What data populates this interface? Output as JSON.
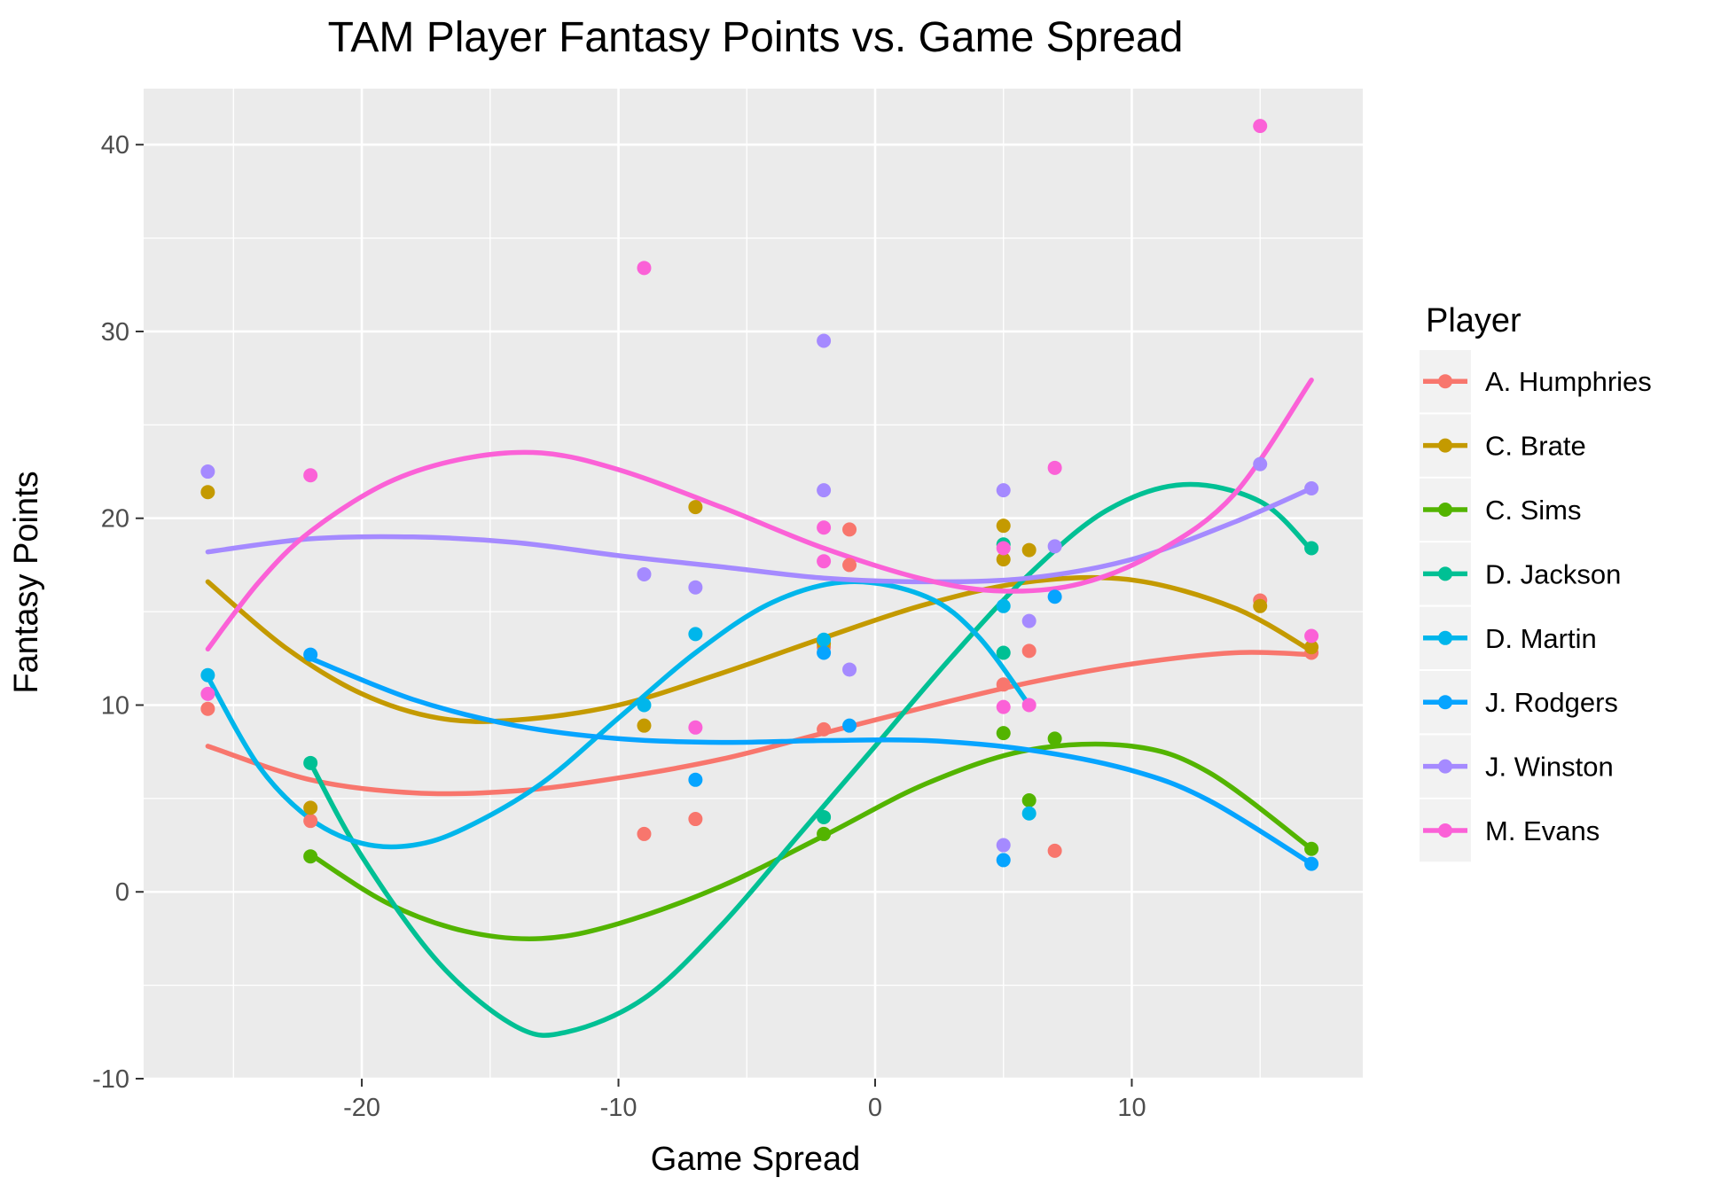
{
  "chart_data": {
    "type": "scatter",
    "title": "TAM Player Fantasy Points vs. Game Spread",
    "xlabel": "Game Spread",
    "ylabel": "Fantasy Points",
    "xlim": [
      -28.5,
      19
    ],
    "ylim": [
      -10,
      43
    ],
    "x_ticks": [
      -20,
      -10,
      0,
      10
    ],
    "x_tick_labels": [
      "-20",
      "-10",
      "0",
      "10"
    ],
    "y_ticks": [
      -10,
      0,
      10,
      20,
      30,
      40
    ],
    "y_tick_labels": [
      "-10",
      "0",
      "10",
      "20",
      "30",
      "40"
    ],
    "grid": true,
    "panel_background": "#EBEBEB",
    "legend": {
      "title": "Player",
      "placement": "right"
    },
    "series": [
      {
        "name": "A. Humphries",
        "color": "#F8766D",
        "points": [
          [
            -26,
            9.8
          ],
          [
            -22,
            3.8
          ],
          [
            -9,
            3.1
          ],
          [
            -7,
            3.9
          ],
          [
            -2,
            8.7
          ],
          [
            -2,
            13.1
          ],
          [
            -1,
            19.4
          ],
          [
            -1,
            17.5
          ],
          [
            5,
            11.1
          ],
          [
            6,
            12.9
          ],
          [
            7,
            2.2
          ],
          [
            15,
            15.6
          ],
          [
            17,
            12.8
          ]
        ],
        "smooth": [
          [
            -26,
            7.8
          ],
          [
            -22,
            6.0
          ],
          [
            -18,
            5.3
          ],
          [
            -14,
            5.4
          ],
          [
            -10,
            6.1
          ],
          [
            -6,
            7.1
          ],
          [
            -2,
            8.5
          ],
          [
            2,
            9.9
          ],
          [
            6,
            11.2
          ],
          [
            10,
            12.2
          ],
          [
            14,
            12.8
          ],
          [
            17,
            12.7
          ]
        ]
      },
      {
        "name": "C. Brate",
        "color": "#C49A00",
        "points": [
          [
            -26,
            21.4
          ],
          [
            -22,
            4.5
          ],
          [
            -9,
            8.9
          ],
          [
            -7,
            20.6
          ],
          [
            -2,
            13.3
          ],
          [
            5,
            19.6
          ],
          [
            5,
            17.8
          ],
          [
            6,
            18.3
          ],
          [
            15,
            15.3
          ],
          [
            17,
            13.1
          ]
        ],
        "smooth": [
          [
            -26,
            16.6
          ],
          [
            -23,
            13.1
          ],
          [
            -20,
            10.6
          ],
          [
            -17,
            9.3
          ],
          [
            -14,
            9.2
          ],
          [
            -10,
            10.0
          ],
          [
            -6,
            11.7
          ],
          [
            -2,
            13.6
          ],
          [
            2,
            15.4
          ],
          [
            6,
            16.6
          ],
          [
            10,
            16.7
          ],
          [
            14,
            15.2
          ],
          [
            17,
            12.9
          ]
        ]
      },
      {
        "name": "C. Sims",
        "color": "#53B400",
        "points": [
          [
            -22,
            1.9
          ],
          [
            -2,
            3.1
          ],
          [
            5,
            8.5
          ],
          [
            6,
            4.9
          ],
          [
            7,
            8.2
          ],
          [
            17,
            2.3
          ]
        ],
        "smooth": [
          [
            -22,
            2.0
          ],
          [
            -19,
            -0.6
          ],
          [
            -16,
            -2.1
          ],
          [
            -13,
            -2.5
          ],
          [
            -10,
            -1.7
          ],
          [
            -6,
            0.3
          ],
          [
            -2,
            3.0
          ],
          [
            2,
            5.8
          ],
          [
            6,
            7.6
          ],
          [
            10,
            7.8
          ],
          [
            13,
            6.4
          ],
          [
            17,
            2.3
          ]
        ]
      },
      {
        "name": "D. Jackson",
        "color": "#00C094",
        "points": [
          [
            -22,
            6.9
          ],
          [
            -2,
            4.0
          ],
          [
            5,
            12.8
          ],
          [
            5,
            18.6
          ],
          [
            17,
            18.4
          ]
        ],
        "smooth": [
          [
            -22,
            6.9
          ],
          [
            -20,
            1.9
          ],
          [
            -17,
            -3.8
          ],
          [
            -14,
            -7.2
          ],
          [
            -12,
            -7.5
          ],
          [
            -9,
            -5.7
          ],
          [
            -6,
            -1.8
          ],
          [
            -3,
            3.0
          ],
          [
            0,
            7.8
          ],
          [
            3,
            12.6
          ],
          [
            6,
            17.0
          ],
          [
            9,
            20.4
          ],
          [
            12,
            21.8
          ],
          [
            15,
            20.9
          ],
          [
            17,
            18.3
          ]
        ]
      },
      {
        "name": "D. Martin",
        "color": "#00B6EB",
        "points": [
          [
            -26,
            11.6
          ],
          [
            -9,
            10.0
          ],
          [
            -7,
            13.8
          ],
          [
            -2,
            13.5
          ],
          [
            5,
            15.3
          ],
          [
            6,
            4.2
          ]
        ],
        "smooth": [
          [
            -26,
            11.5
          ],
          [
            -24,
            6.7
          ],
          [
            -22,
            3.9
          ],
          [
            -20,
            2.6
          ],
          [
            -18,
            2.5
          ],
          [
            -16,
            3.4
          ],
          [
            -13,
            5.8
          ],
          [
            -10,
            9.3
          ],
          [
            -7,
            12.8
          ],
          [
            -4,
            15.5
          ],
          [
            -1,
            16.6
          ],
          [
            2,
            15.8
          ],
          [
            4,
            13.7
          ],
          [
            6,
            10.0
          ]
        ]
      },
      {
        "name": "J. Rodgers",
        "color": "#06A4FF",
        "points": [
          [
            -22,
            12.7
          ],
          [
            -7,
            6.0
          ],
          [
            -2,
            12.8
          ],
          [
            -1,
            8.9
          ],
          [
            5,
            1.7
          ],
          [
            7,
            15.8
          ],
          [
            17,
            1.5
          ]
        ],
        "smooth": [
          [
            -22,
            12.5
          ],
          [
            -18,
            10.3
          ],
          [
            -14,
            8.9
          ],
          [
            -10,
            8.2
          ],
          [
            -6,
            8.0
          ],
          [
            -2,
            8.1
          ],
          [
            2,
            8.1
          ],
          [
            6,
            7.6
          ],
          [
            10,
            6.5
          ],
          [
            13,
            4.9
          ],
          [
            17,
            1.5
          ]
        ]
      },
      {
        "name": "J. Winston",
        "color": "#A58AFF",
        "points": [
          [
            -26,
            22.5
          ],
          [
            -9,
            17.0
          ],
          [
            -7,
            16.3
          ],
          [
            -2,
            29.5
          ],
          [
            -2,
            21.5
          ],
          [
            -1,
            11.9
          ],
          [
            5,
            21.5
          ],
          [
            5,
            2.5
          ],
          [
            6,
            14.5
          ],
          [
            7,
            18.5
          ],
          [
            15,
            22.9
          ],
          [
            17,
            21.6
          ]
        ],
        "smooth": [
          [
            -26,
            18.2
          ],
          [
            -22,
            18.9
          ],
          [
            -18,
            19.0
          ],
          [
            -14,
            18.7
          ],
          [
            -10,
            18.0
          ],
          [
            -6,
            17.4
          ],
          [
            -2,
            16.8
          ],
          [
            2,
            16.6
          ],
          [
            6,
            16.8
          ],
          [
            10,
            17.8
          ],
          [
            14,
            19.8
          ],
          [
            17,
            21.6
          ]
        ]
      },
      {
        "name": "M. Evans",
        "color": "#FB61D7",
        "points": [
          [
            -26,
            10.6
          ],
          [
            -22,
            22.3
          ],
          [
            -9,
            33.4
          ],
          [
            -7,
            8.8
          ],
          [
            -2,
            19.5
          ],
          [
            -2,
            17.7
          ],
          [
            5,
            18.4
          ],
          [
            5,
            9.9
          ],
          [
            6,
            10.0
          ],
          [
            7,
            22.7
          ],
          [
            15,
            41.0
          ],
          [
            17,
            13.7
          ]
        ],
        "smooth": [
          [
            -26,
            13.0
          ],
          [
            -24,
            16.6
          ],
          [
            -22,
            19.3
          ],
          [
            -19,
            21.9
          ],
          [
            -16,
            23.2
          ],
          [
            -13,
            23.5
          ],
          [
            -10,
            22.6
          ],
          [
            -6,
            20.6
          ],
          [
            -2,
            18.4
          ],
          [
            2,
            16.7
          ],
          [
            5,
            16.1
          ],
          [
            8,
            16.5
          ],
          [
            11,
            18.2
          ],
          [
            14,
            21.3
          ],
          [
            17,
            27.4
          ]
        ]
      }
    ]
  }
}
